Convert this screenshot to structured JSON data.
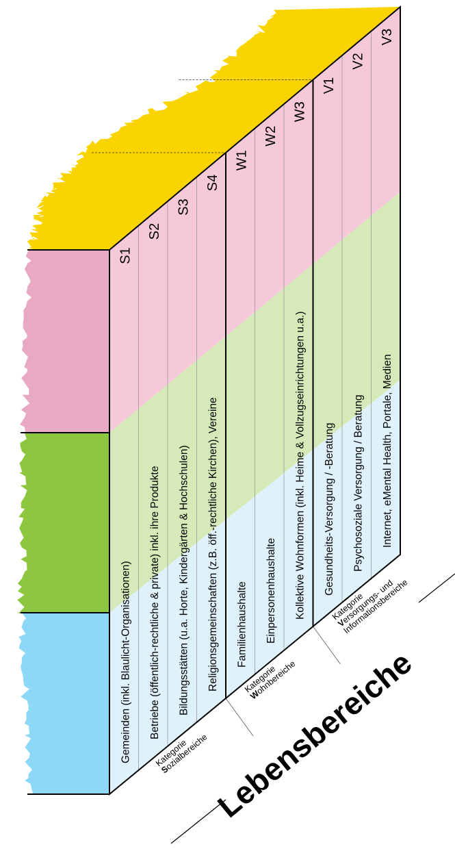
{
  "title": "Lebensbereiche",
  "categories": [
    {
      "line1": "Kategorie",
      "initial": "S",
      "rest": "ozialbereiche",
      "extra": null,
      "columns": [
        {
          "code": "S1",
          "label": "Gemeinden (inkl. Blaulicht-Organisationen)"
        },
        {
          "code": "S2",
          "label": "Betriebe (öffentlich-rechtliche & private) inkl. ihre Produkte"
        },
        {
          "code": "S3",
          "label": "Bildungsstätten (u.a. Horte, Kindergärten & Hochschulen)"
        },
        {
          "code": "S4",
          "label": "Religionsgemeinschaften (z.B. öff.-rechtliche Kirchen), Vereine"
        }
      ]
    },
    {
      "line1": "Kategorie",
      "initial": "W",
      "rest": "ohnbereiche",
      "extra": null,
      "columns": [
        {
          "code": "W1",
          "label": "Familienhaushalte"
        },
        {
          "code": "W2",
          "label": "Einpersonenhaushalte"
        },
        {
          "code": "W3",
          "label": "Kollektive Wohnformen (inkl. Heime & Vollzugseinrichtungen u.a.)"
        }
      ]
    },
    {
      "line1": "Kategorie",
      "initial": "V",
      "rest": "ersorgungs- und",
      "extra": "Informationsbereiche",
      "columns": [
        {
          "code": "V1",
          "label": "Gesundheits-Versorgung / -Beratung"
        },
        {
          "code": "V2",
          "label": "Psychosoziale Versorgung / Beratung"
        },
        {
          "code": "V3",
          "label": "Internet, eMental Health, Portale, Medien"
        }
      ]
    }
  ]
}
